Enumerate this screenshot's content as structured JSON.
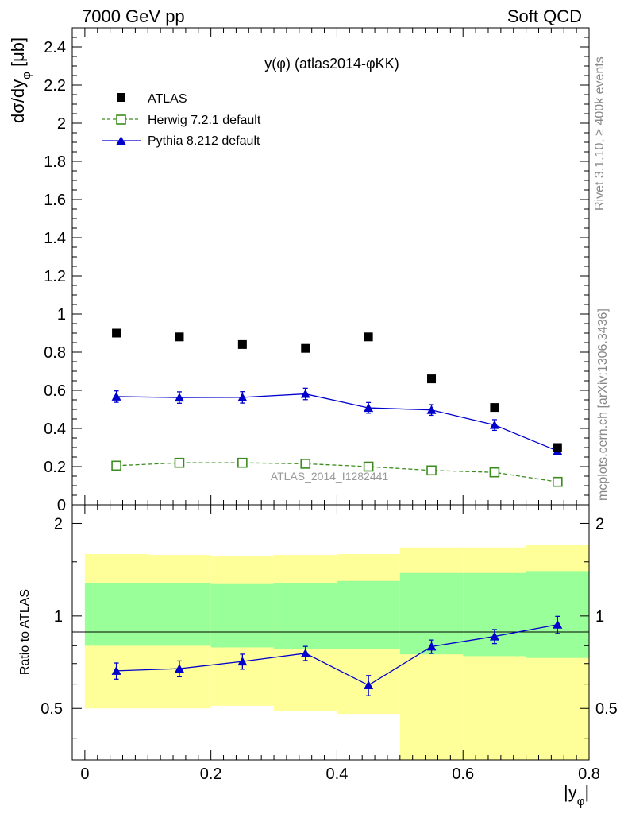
{
  "header": {
    "left": "7000 GeV pp",
    "right": "Soft QCD"
  },
  "side_labels": {
    "rivet": "Rivet 3.1.10, ≥ 400k events",
    "mcplots": "mcplots.cern.ch [arXiv:1306.3436]"
  },
  "chart_data": [
    {
      "type": "scatter",
      "panel": "main",
      "title": "y(φ) (atlas2014-φKK)",
      "ylabel": "dσ/dy_φ [μb]",
      "ylabel_parts": {
        "main": "dσ/dy",
        "sub": "φ",
        "unit": " [μb]"
      },
      "xlim": [
        -0.02,
        0.8
      ],
      "ylim": [
        0,
        2.5
      ],
      "yticks": [
        0,
        0.2,
        0.4,
        0.6,
        0.8,
        1,
        1.2,
        1.4,
        1.6,
        1.8,
        2,
        2.2,
        2.4
      ],
      "ytick_labels": [
        "0",
        "0.2",
        "0.4",
        "0.6",
        "0.8",
        "1",
        "1.2",
        "1.4",
        "1.6",
        "1.8",
        "2",
        "2.2",
        "2.4"
      ],
      "watermark": "ATLAS_2014_I1282441",
      "legend_position": "top-left",
      "x": [
        0.05,
        0.15,
        0.25,
        0.35,
        0.45,
        0.55,
        0.65,
        0.75
      ],
      "series": [
        {
          "name": "ATLAS",
          "style": "square-filled",
          "color": "#000000",
          "values": [
            0.9,
            0.88,
            0.84,
            0.82,
            0.88,
            0.66,
            0.51,
            0.3
          ]
        },
        {
          "name": "Herwig 7.2.1 default",
          "style": "square-open-dashed",
          "color": "#3a8c1e",
          "values": [
            0.205,
            0.22,
            0.22,
            0.215,
            0.2,
            0.18,
            0.17,
            0.12
          ]
        },
        {
          "name": "Pythia 8.212 default",
          "style": "triangle-solid",
          "color": "#0000cc",
          "values": [
            0.567,
            0.562,
            0.563,
            0.581,
            0.508,
            0.497,
            0.418,
            0.282
          ],
          "errors": [
            0.03,
            0.03,
            0.03,
            0.03,
            0.028,
            0.028,
            0.028,
            0.02
          ]
        }
      ]
    },
    {
      "type": "line",
      "panel": "ratio",
      "ylabel": "Ratio to ATLAS",
      "xlabel": "|y_φ|",
      "xlabel_parts": {
        "main": "|y",
        "sub": "φ",
        "tail": "|"
      },
      "xlim": [
        -0.02,
        0.8
      ],
      "ylim": [
        0.34,
        2.3
      ],
      "xticks": [
        0,
        0.2,
        0.4,
        0.6,
        0.8
      ],
      "xtick_labels": [
        "0",
        "0.2",
        "0.4",
        "0.6",
        "0.8"
      ],
      "yticks": [
        0.5,
        1,
        2
      ],
      "ytick_labels": [
        "0.5",
        "1",
        "2"
      ],
      "bins": [
        0,
        0.1,
        0.2,
        0.3,
        0.4,
        0.5,
        0.6,
        0.7,
        0.8
      ],
      "stat_band": {
        "color": "#99ff99",
        "low": [
          0.8,
          0.8,
          0.79,
          0.78,
          0.78,
          0.75,
          0.74,
          0.73
        ],
        "high": [
          1.28,
          1.28,
          1.27,
          1.28,
          1.3,
          1.38,
          1.38,
          1.4
        ]
      },
      "total_band": {
        "color": "#ffff99",
        "low": [
          0.5,
          0.5,
          0.51,
          0.49,
          0.48,
          0.34,
          0.34,
          0.34
        ],
        "high": [
          1.59,
          1.58,
          1.57,
          1.58,
          1.59,
          1.67,
          1.67,
          1.7
        ]
      },
      "x": [
        0.05,
        0.15,
        0.25,
        0.35,
        0.45,
        0.55,
        0.65,
        0.75
      ],
      "series": [
        {
          "name": "Pythia 8.212 default / ATLAS",
          "color": "#0000cc",
          "values": [
            0.663,
            0.674,
            0.711,
            0.756,
            0.595,
            0.795,
            0.858,
            0.937
          ],
          "errors": [
            0.04,
            0.04,
            0.04,
            0.04,
            0.045,
            0.04,
            0.045,
            0.06
          ]
        }
      ]
    }
  ]
}
